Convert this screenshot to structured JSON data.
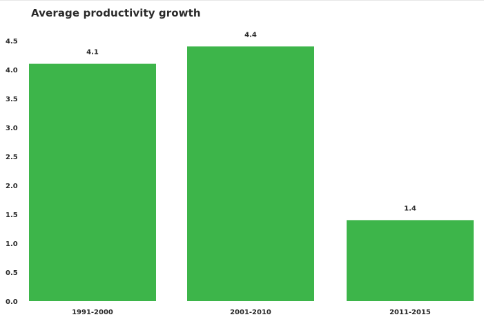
{
  "chart_data": {
    "type": "bar",
    "title": "Average productivity growth",
    "xlabel": "",
    "ylabel": "",
    "categories": [
      "1991-2000",
      "2001-2010",
      "2011-2015"
    ],
    "values": [
      4.1,
      4.4,
      1.4
    ],
    "data_labels": [
      "4.1",
      "4.4",
      "1.4"
    ],
    "ylim": [
      0,
      4.5
    ],
    "yticks": [
      "0.0",
      "0.5",
      "1.0",
      "1.5",
      "2.0",
      "2.5",
      "3.0",
      "3.5",
      "4.0",
      "4.5"
    ],
    "bar_color": "#3db54a",
    "grid": false,
    "legend": "none"
  }
}
